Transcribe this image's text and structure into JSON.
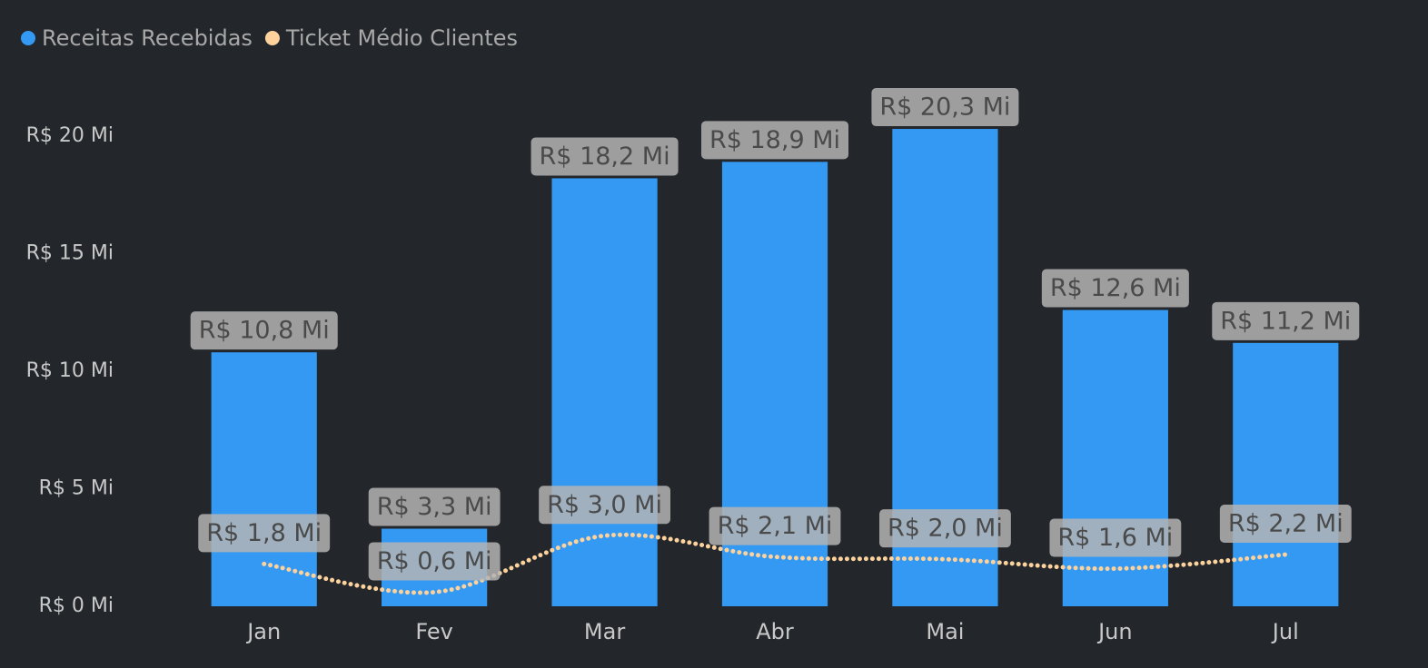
{
  "chart_data": {
    "type": "combo",
    "categories": [
      "Jan",
      "Fev",
      "Mar",
      "Abr",
      "Mai",
      "Jun",
      "Jul"
    ],
    "series": [
      {
        "name": "Receitas Recebidas",
        "type": "bar",
        "color": "#3399f3",
        "values": [
          10.8,
          3.3,
          18.2,
          18.9,
          20.3,
          12.6,
          11.2
        ],
        "value_labels": [
          "R$ 10,8 Mi",
          "R$ 3,3 Mi",
          "R$ 18,2 Mi",
          "R$ 18,9 Mi",
          "R$ 20,3 Mi",
          "R$ 12,6 Mi",
          "R$ 11,2 Mi"
        ]
      },
      {
        "name": "Ticket Médio Clientes",
        "type": "line",
        "color": "#fdd29c",
        "values": [
          1.8,
          0.6,
          3.0,
          2.1,
          2.0,
          1.6,
          2.2
        ],
        "value_labels": [
          "R$ 1,8 Mi",
          "R$ 0,6 Mi",
          "R$ 3,0 Mi",
          "R$ 2,1 Mi",
          "R$ 2,0 Mi",
          "R$ 1,6 Mi",
          "R$ 2,2 Mi"
        ]
      }
    ],
    "ylim": [
      0,
      22
    ],
    "yticks": [
      {
        "value": 0,
        "label": "R$ 0 Mi"
      },
      {
        "value": 5,
        "label": "R$ 5 Mi"
      },
      {
        "value": 10,
        "label": "R$ 10 Mi"
      },
      {
        "value": 15,
        "label": "R$ 15 Mi"
      },
      {
        "value": 20,
        "label": "R$ 20 Mi"
      }
    ],
    "legend": "top-left",
    "grid": false
  }
}
